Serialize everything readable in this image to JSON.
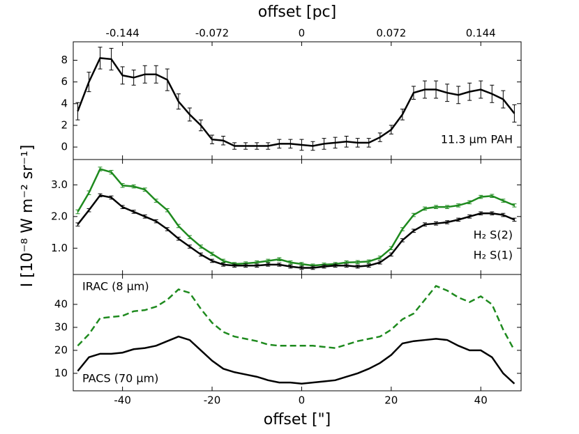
{
  "chart_data": [
    {
      "type": "line",
      "x2label": "offset [pc]",
      "x2lim": [
        -0.1836,
        0.1764
      ],
      "x2ticks": [
        -0.144,
        -0.072,
        0,
        0.072,
        0.144
      ],
      "xlim": [
        -51,
        49
      ],
      "ylim": [
        -1.15,
        9.7
      ],
      "yticks": [
        0,
        2,
        4,
        6,
        8
      ],
      "x": [
        -50,
        -47.5,
        -45,
        -42.5,
        -40,
        -37.5,
        -35,
        -32.5,
        -30,
        -27.5,
        -25,
        -22.5,
        -20,
        -17.5,
        -15,
        -12.5,
        -10,
        -7.5,
        -5,
        -2.5,
        0,
        2.5,
        5,
        7.5,
        10,
        12.5,
        15,
        17.5,
        20,
        22.5,
        25,
        27.5,
        30,
        32.5,
        35,
        37.5,
        40,
        42.5,
        45,
        47.5
      ],
      "series": [
        {
          "name": "11.3 μm PAH",
          "color": "#000000",
          "values": [
            3.3,
            6.0,
            8.2,
            8.1,
            6.6,
            6.4,
            6.7,
            6.7,
            6.2,
            4.2,
            3.0,
            2.0,
            0.7,
            0.6,
            0.1,
            0.1,
            0.1,
            0.1,
            0.3,
            0.3,
            0.2,
            0.1,
            0.3,
            0.4,
            0.5,
            0.4,
            0.4,
            0.9,
            1.6,
            3.0,
            5.0,
            5.3,
            5.3,
            5.0,
            4.8,
            5.1,
            5.3,
            4.9,
            4.4,
            3.1
          ],
          "errors": [
            0.8,
            0.9,
            1.0,
            1.0,
            0.8,
            0.7,
            0.8,
            0.8,
            1.0,
            0.7,
            0.6,
            0.5,
            0.4,
            0.4,
            0.3,
            0.3,
            0.3,
            0.3,
            0.4,
            0.4,
            0.5,
            0.4,
            0.5,
            0.5,
            0.5,
            0.4,
            0.4,
            0.4,
            0.4,
            0.5,
            0.6,
            0.8,
            0.8,
            0.8,
            0.8,
            0.8,
            0.8,
            0.8,
            0.8,
            0.8
          ]
        }
      ]
    },
    {
      "type": "line",
      "ylabel": "I [10⁻⁸ W m⁻² sr⁻¹]",
      "xlim": [
        -51,
        49
      ],
      "ylim": [
        0.17,
        3.8
      ],
      "yticks": [
        {
          "value": 1,
          "label": "1.0"
        },
        {
          "value": 2,
          "label": "2.0"
        },
        {
          "value": 3,
          "label": "3.0"
        }
      ],
      "x": [
        -50,
        -47.5,
        -45,
        -42.5,
        -40,
        -37.5,
        -35,
        -32.5,
        -30,
        -27.5,
        -25,
        -22.5,
        -20,
        -17.5,
        -15,
        -12.5,
        -10,
        -7.5,
        -5,
        -2.5,
        0,
        2.5,
        5,
        7.5,
        10,
        12.5,
        15,
        17.5,
        20,
        22.5,
        25,
        27.5,
        30,
        32.5,
        35,
        37.5,
        40,
        42.5,
        45,
        47.5
      ],
      "series": [
        {
          "name": "H₂ S(2)",
          "color": "#1e8a1e",
          "values": [
            2.15,
            2.75,
            3.5,
            3.4,
            2.98,
            2.95,
            2.85,
            2.5,
            2.2,
            1.7,
            1.35,
            1.05,
            0.82,
            0.6,
            0.5,
            0.52,
            0.55,
            0.6,
            0.65,
            0.55,
            0.5,
            0.45,
            0.48,
            0.5,
            0.55,
            0.56,
            0.58,
            0.7,
            1.0,
            1.6,
            2.05,
            2.25,
            2.3,
            2.3,
            2.35,
            2.45,
            2.62,
            2.65,
            2.5,
            2.35
          ],
          "errors": [
            0.06,
            0.06,
            0.06,
            0.06,
            0.06,
            0.05,
            0.05,
            0.05,
            0.05,
            0.05,
            0.05,
            0.05,
            0.05,
            0.05,
            0.05,
            0.05,
            0.05,
            0.05,
            0.05,
            0.05,
            0.05,
            0.05,
            0.05,
            0.05,
            0.05,
            0.05,
            0.05,
            0.05,
            0.05,
            0.05,
            0.05,
            0.05,
            0.05,
            0.05,
            0.05,
            0.05,
            0.05,
            0.05,
            0.05,
            0.05
          ]
        },
        {
          "name": "H₂ S(1)",
          "color": "#000000",
          "values": [
            1.75,
            2.2,
            2.67,
            2.6,
            2.3,
            2.15,
            2.0,
            1.85,
            1.6,
            1.3,
            1.05,
            0.8,
            0.6,
            0.48,
            0.45,
            0.45,
            0.45,
            0.48,
            0.48,
            0.42,
            0.38,
            0.38,
            0.42,
            0.45,
            0.45,
            0.42,
            0.45,
            0.55,
            0.8,
            1.25,
            1.55,
            1.75,
            1.78,
            1.82,
            1.9,
            2.0,
            2.1,
            2.1,
            2.05,
            1.9
          ],
          "errors": [
            0.05,
            0.05,
            0.05,
            0.05,
            0.05,
            0.05,
            0.05,
            0.05,
            0.05,
            0.05,
            0.05,
            0.05,
            0.05,
            0.05,
            0.05,
            0.05,
            0.05,
            0.05,
            0.05,
            0.05,
            0.05,
            0.05,
            0.05,
            0.05,
            0.05,
            0.05,
            0.05,
            0.05,
            0.05,
            0.05,
            0.05,
            0.05,
            0.05,
            0.05,
            0.05,
            0.05,
            0.05,
            0.05,
            0.05,
            0.05
          ]
        }
      ]
    },
    {
      "type": "line",
      "xlabel": "offset [\"]",
      "xlim": [
        -51,
        49
      ],
      "xticks": [
        -40,
        -20,
        0,
        20,
        40
      ],
      "ylim": [
        2.4,
        53
      ],
      "yticks": [
        10,
        20,
        30,
        40
      ],
      "x": [
        -50,
        -47.5,
        -45,
        -42.5,
        -40,
        -37.5,
        -35,
        -32.5,
        -30,
        -27.5,
        -25,
        -22.5,
        -20,
        -17.5,
        -15,
        -12.5,
        -10,
        -7.5,
        -5,
        -2.5,
        0,
        2.5,
        5,
        7.5,
        10,
        12.5,
        15,
        17.5,
        20,
        22.5,
        25,
        27.5,
        30,
        32.5,
        35,
        37.5,
        40,
        42.5,
        45,
        47.5
      ],
      "series": [
        {
          "name": "IRAC (8 μm)",
          "color": "#1e8a1e",
          "dashed": true,
          "values": [
            22,
            27,
            34,
            34.5,
            35,
            37,
            37.5,
            39,
            42,
            46.5,
            45,
            38,
            32,
            28,
            26,
            25,
            24,
            22.5,
            22,
            22,
            22,
            22,
            21.5,
            21,
            22.5,
            24,
            25,
            26,
            29,
            33.5,
            36,
            42,
            48,
            46,
            43,
            41,
            43.5,
            40,
            29,
            20
          ]
        },
        {
          "name": "PACS (70 μm)",
          "color": "#000000",
          "values": [
            11,
            17,
            18.5,
            18.5,
            19,
            20.5,
            21,
            22,
            24,
            26,
            24.5,
            20,
            15.5,
            12,
            10.5,
            9.5,
            8.5,
            7,
            6,
            6,
            5.5,
            6,
            6.5,
            7,
            8.5,
            10,
            12,
            14.5,
            18,
            23,
            24,
            24.5,
            25,
            24.5,
            22,
            20,
            20,
            17,
            10,
            5.5
          ]
        }
      ]
    }
  ]
}
